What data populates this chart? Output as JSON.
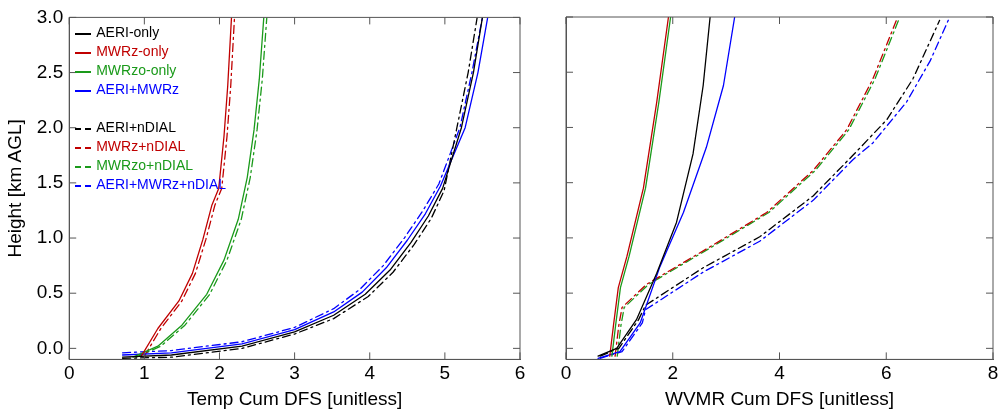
{
  "chart_data": [
    {
      "type": "line",
      "xlabel": "Temp Cum DFS [unitless]",
      "ylabel": "Height [km AGL]",
      "xlim": [
        0,
        6
      ],
      "xticks": [
        0,
        1,
        2,
        3,
        4,
        5,
        6
      ],
      "ylim": [
        -0.1,
        3.0
      ],
      "yticks": [
        {
          "value": 0,
          "label": "0.0"
        },
        {
          "value": 0.5,
          "label": "0.5"
        },
        {
          "value": 1,
          "label": "1.0"
        },
        {
          "value": 1.5,
          "label": "1.5"
        },
        {
          "value": 2,
          "label": "2.0"
        },
        {
          "value": 2.5,
          "label": "2.5"
        },
        {
          "value": 3,
          "label": "3.0"
        }
      ],
      "grid": false,
      "legend": "top left",
      "marker": "none",
      "series": [
        {
          "name": "AERI-only",
          "color": "#000000",
          "line_style": "solid",
          "x": [
            0.71,
            1.36,
            2.3,
            3.0,
            3.52,
            3.94,
            4.27,
            4.55,
            4.78,
            4.97,
            5.22,
            5.38,
            5.5
          ],
          "values": [
            -0.08,
            -0.06,
            0.02,
            0.15,
            0.3,
            0.49,
            0.71,
            0.96,
            1.2,
            1.45,
            2.0,
            2.5,
            3.0
          ]
        },
        {
          "name": "MWRz-only",
          "color": "#c00000",
          "line_style": "solid",
          "x": [
            0.96,
            1.18,
            1.46,
            1.64,
            1.78,
            1.9,
            1.99,
            2.06,
            2.11,
            2.16
          ],
          "values": [
            -0.07,
            0.18,
            0.43,
            0.68,
            0.99,
            1.3,
            1.45,
            1.92,
            2.38,
            3.0
          ]
        },
        {
          "name": "MWRzo-only",
          "color": "#1a9a1a",
          "line_style": "solid",
          "x": [
            0.85,
            1.18,
            1.5,
            1.83,
            2.06,
            2.25,
            2.37,
            2.46,
            2.53,
            2.59
          ],
          "values": [
            -0.08,
            0.02,
            0.21,
            0.49,
            0.8,
            1.17,
            1.55,
            1.98,
            2.44,
            3.0
          ]
        },
        {
          "name": "AERI+MWRz",
          "color": "#0000ff",
          "line_style": "solid",
          "x": [
            0.71,
            1.36,
            2.3,
            3.0,
            3.52,
            3.9,
            4.22,
            4.5,
            4.74,
            4.94,
            5.27,
            5.44,
            5.57
          ],
          "values": [
            -0.06,
            -0.04,
            0.04,
            0.17,
            0.33,
            0.51,
            0.73,
            0.98,
            1.22,
            1.47,
            2.0,
            2.5,
            3.0
          ]
        },
        {
          "name": "AERI+nDIAL",
          "color": "#000000",
          "line_style": "dashed",
          "x": [
            0.71,
            1.36,
            2.3,
            3.0,
            3.52,
            3.98,
            4.31,
            4.59,
            4.82,
            4.99,
            5.16,
            5.31,
            5.43
          ],
          "values": [
            -0.09,
            -0.08,
            0.0,
            0.13,
            0.27,
            0.47,
            0.69,
            0.94,
            1.18,
            1.43,
            2.0,
            2.5,
            3.0
          ]
        },
        {
          "name": "MWRz+nDIAL",
          "color": "#c00000",
          "line_style": "dashed",
          "x": [
            1.0,
            1.22,
            1.5,
            1.68,
            1.82,
            1.94,
            2.03,
            2.1,
            2.15,
            2.2
          ],
          "values": [
            -0.07,
            0.18,
            0.43,
            0.68,
            0.99,
            1.3,
            1.45,
            1.92,
            2.38,
            3.0
          ]
        },
        {
          "name": "MWRzo+nDIAL",
          "color": "#1a9a1a",
          "line_style": "dashed",
          "x": [
            0.89,
            1.22,
            1.54,
            1.87,
            2.1,
            2.29,
            2.41,
            2.5,
            2.57,
            2.63
          ],
          "values": [
            -0.08,
            0.02,
            0.21,
            0.49,
            0.8,
            1.17,
            1.55,
            1.98,
            2.44,
            3.0
          ]
        },
        {
          "name": "AERI+MWRz+nDIAL",
          "color": "#0000ff",
          "line_style": "dashed",
          "x": [
            0.71,
            1.36,
            2.3,
            3.0,
            3.52,
            3.86,
            4.18,
            4.46,
            4.7,
            4.92,
            5.2,
            5.36,
            5.5
          ],
          "values": [
            -0.04,
            -0.02,
            0.06,
            0.19,
            0.36,
            0.53,
            0.75,
            1.0,
            1.24,
            1.49,
            2.0,
            2.5,
            3.0
          ]
        }
      ]
    },
    {
      "type": "line",
      "xlabel": "WVMR Cum DFS [unitless]",
      "xlim": [
        0,
        8
      ],
      "xticks": [
        0,
        2,
        4,
        6,
        8
      ],
      "ylim": [
        -0.1,
        3.0
      ],
      "yticks": [
        0,
        0.5,
        1,
        1.5,
        2,
        2.5,
        3
      ],
      "tick_labels": "x",
      "grid": false,
      "marker": "none",
      "series": [
        {
          "color": "#000000",
          "line_style": "solid",
          "x": [
            0.6,
            0.95,
            1.32,
            1.7,
            2.07,
            2.38,
            2.57,
            2.7
          ],
          "values": [
            -0.07,
            0.0,
            0.26,
            0.68,
            1.14,
            1.76,
            2.38,
            3.0
          ]
        },
        {
          "color": "#c00000",
          "line_style": "solid",
          "x": [
            0.82,
            0.89,
            0.98,
            1.14,
            1.45,
            1.7,
            1.92
          ],
          "values": [
            -0.07,
            0.21,
            0.55,
            0.83,
            1.45,
            2.23,
            3.0
          ]
        },
        {
          "color": "#1a9a1a",
          "line_style": "solid",
          "x": [
            0.86,
            0.93,
            1.02,
            1.18,
            1.49,
            1.74,
            1.96
          ],
          "values": [
            -0.07,
            0.21,
            0.55,
            0.83,
            1.45,
            2.23,
            3.0
          ]
        },
        {
          "color": "#0000ff",
          "line_style": "solid",
          "x": [
            0.6,
            1.01,
            1.39,
            1.76,
            2.2,
            2.63,
            2.95,
            3.16
          ],
          "values": [
            -0.09,
            -0.03,
            0.23,
            0.74,
            1.23,
            1.82,
            2.38,
            3.0
          ]
        },
        {
          "color": "#000000",
          "line_style": "dashed",
          "x": [
            0.64,
            0.99,
            1.36,
            1.49,
            2.57,
            3.63,
            4.63,
            5.38,
            6.01,
            6.5,
            7.0
          ],
          "values": [
            -0.07,
            0.0,
            0.26,
            0.39,
            0.73,
            1.01,
            1.38,
            1.75,
            2.07,
            2.44,
            2.97
          ]
        },
        {
          "color": "#c00000",
          "line_style": "dashed",
          "x": [
            0.92,
            0.99,
            1.05,
            1.51,
            2.7,
            3.76,
            4.63,
            5.26,
            5.75,
            6.19
          ],
          "values": [
            -0.07,
            0.21,
            0.37,
            0.58,
            0.92,
            1.23,
            1.61,
            1.98,
            2.44,
            2.97
          ]
        },
        {
          "color": "#1a9a1a",
          "line_style": "dashed",
          "x": [
            0.96,
            1.03,
            1.09,
            1.55,
            2.74,
            3.8,
            4.67,
            5.3,
            5.79,
            6.23
          ],
          "values": [
            -0.07,
            0.21,
            0.37,
            0.58,
            0.92,
            1.23,
            1.61,
            1.98,
            2.44,
            2.97
          ]
        },
        {
          "color": "#0000ff",
          "line_style": "dashed",
          "x": [
            0.64,
            1.05,
            1.43,
            1.49,
            2.57,
            3.63,
            4.63,
            5.38,
            5.75,
            6.38,
            6.82,
            7.19
          ],
          "values": [
            -0.09,
            -0.03,
            0.23,
            0.35,
            0.69,
            0.97,
            1.34,
            1.71,
            1.86,
            2.23,
            2.6,
            3.0
          ]
        }
      ]
    }
  ]
}
